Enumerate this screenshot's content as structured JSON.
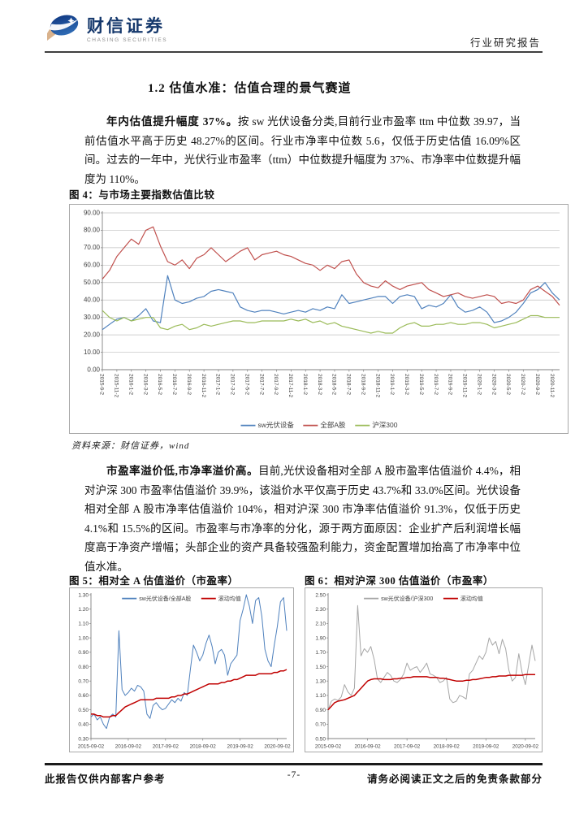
{
  "header": {
    "brand_cn": "财信证券",
    "brand_en": "CHASING SECURITIES",
    "report_type": "行业研究报告"
  },
  "section_title": "1.2 估值水准：估值合理的景气赛道",
  "para1": {
    "lead": "年内估值提升幅度 37%。",
    "text": "按 sw 光伏设备分类,目前行业市盈率 ttm 中位数 39.97，当前估值水平高于历史 48.27%的区间。行业市净率中位数 5.6，仅低于历史估值 16.09%区间。过去的一年中，光伏行业市盈率（ttm）中位数提升幅度为 37%、市净率中位数提升幅度为 110%。"
  },
  "figure4_source": "资料来源：财信证券，wind",
  "para2": {
    "lead": "市盈率溢价低,市净率溢价高。",
    "text": "目前,光伏设备相对全部 A 股市盈率估值溢价 4.4%，相对沪深 300 市盈率估值溢价 39.9%，该溢价水平仅高于历史 43.7%和 33.0%区间。光伏设备相对全部 A 股市净率估值溢价 104%，相对沪深 300 市净率估值溢价 91.3%，仅低于历史 4.1%和 15.5%的区间。市盈率与市净率的分化，源于两方面原因：企业扩产后利润增长幅度高于净资产增幅；头部企业的资产具备较强盈利能力，资金配置增加抬高了市净率中位值水准。"
  },
  "footer": {
    "left": "此报告仅供内部客户参考",
    "page": "-7-",
    "right": "请务必阅读正文之后的免责条款部分"
  },
  "colors": {
    "excel_blue": "#4F81BD",
    "excel_red": "#C0504D",
    "excel_green": "#9BBB59",
    "mean_red": "#C00000",
    "series_gray": "#A6A6A6",
    "brand_navy": "#15386c"
  },
  "chart_data": [
    {
      "type": "line",
      "title": "图 4：与市场主要指数估值比较",
      "ylabel": "",
      "ylim": [
        0,
        90
      ],
      "ytick": 10,
      "ydec": 2,
      "grid": true,
      "legend_pos": "bottom",
      "x_start": "2015-09",
      "x_freq": "monthly",
      "x_label_step": 2,
      "x_rotate": true,
      "x_labels": [
        "2015-9-2",
        "2015-11-2",
        "2016-1-2",
        "2016-3-2",
        "2016-5-2",
        "2016-7-2",
        "2016-9-2",
        "2016-11-2",
        "2017-1-2",
        "2017-3-2",
        "2017-5-2",
        "2017-7-2",
        "2017-9-2",
        "2017-11-2",
        "2018-1-2",
        "2018-3-2",
        "2018-5-2",
        "2018-7-2",
        "2018-9-2",
        "2018-11-2",
        "2019-1-2",
        "2019-3-2",
        "2019-5-2",
        "2019-7-2",
        "2019-9-2",
        "2019-11-2",
        "2020-1-2",
        "2020-3-2",
        "2020-5-2",
        "2020-7-2",
        "2020-9-2",
        "2020-11-2"
      ],
      "series": [
        {
          "name": "sw光伏设备",
          "color": "#4F81BD",
          "values": [
            23,
            26,
            29,
            30,
            28,
            31,
            35,
            28,
            27,
            54,
            40,
            38,
            39,
            41,
            42,
            45,
            46,
            45,
            44,
            36,
            34,
            33,
            34,
            34,
            33,
            32,
            33,
            34,
            33,
            35,
            34,
            36,
            35,
            43,
            38,
            39,
            40,
            41,
            42,
            42,
            38,
            42,
            43,
            42,
            35,
            37,
            36,
            38,
            43,
            36,
            33,
            34,
            36,
            33,
            27,
            28,
            30,
            33,
            38,
            44,
            46,
            50,
            44,
            40
          ]
        },
        {
          "name": "全部A股",
          "color": "#C0504D",
          "values": [
            52,
            57,
            65,
            70,
            75,
            72,
            80,
            82,
            71,
            62,
            60,
            63,
            58,
            64,
            66,
            70,
            66,
            62,
            65,
            68,
            70,
            63,
            66,
            67,
            68,
            66,
            65,
            63,
            61,
            60,
            57,
            60,
            58,
            62,
            63,
            55,
            50,
            48,
            47,
            51,
            48,
            46,
            48,
            49,
            50,
            46,
            44,
            42,
            43,
            44,
            42,
            41,
            42,
            43,
            42,
            38,
            39,
            38,
            40,
            46,
            48,
            45,
            42,
            37
          ]
        },
        {
          "name": "沪深300",
          "color": "#9BBB59",
          "values": [
            34,
            30,
            28,
            30,
            28,
            29,
            30,
            30,
            24,
            23,
            25,
            26,
            23,
            24,
            26,
            25,
            26,
            27,
            28,
            28,
            27,
            27,
            28,
            28,
            28,
            28,
            29,
            28,
            29,
            27,
            28,
            26,
            27,
            25,
            24,
            23,
            22,
            21,
            22,
            21,
            21,
            24,
            26,
            27,
            25,
            25,
            26,
            26,
            27,
            26,
            26,
            27,
            27,
            26,
            24,
            25,
            26,
            27,
            29,
            31,
            31,
            30,
            30,
            30
          ]
        }
      ]
    },
    {
      "type": "line",
      "title": "图 5：相对全 A 估值溢价（市盈率）",
      "ylim": [
        0.3,
        1.3
      ],
      "ytick": 0.1,
      "ydec": 2,
      "grid": false,
      "legend_pos": "top",
      "x_start": "2015-09",
      "x_freq": "monthly",
      "x_label_step": 12,
      "x_rotate": false,
      "x_labels": [
        "2015-09-02",
        "2016-09-02",
        "2017-09-02",
        "2018-09-02",
        "2019-09-02",
        "2020-09-02"
      ],
      "series": [
        {
          "name": "sw光伏设备/全部A股",
          "color": "#4F81BD",
          "values": [
            0.45,
            0.47,
            0.43,
            0.45,
            0.4,
            0.37,
            0.45,
            0.47,
            0.45,
            1.05,
            0.64,
            0.6,
            0.62,
            0.65,
            0.63,
            0.67,
            0.66,
            0.63,
            0.47,
            0.44,
            0.53,
            0.55,
            0.52,
            0.5,
            0.51,
            0.54,
            0.57,
            0.55,
            0.58,
            0.56,
            0.62,
            0.6,
            0.78,
            0.95,
            0.9,
            0.84,
            0.88,
            0.96,
            1.02,
            0.94,
            0.82,
            0.9,
            0.92,
            0.88,
            0.74,
            0.82,
            0.85,
            0.88,
            1.12,
            1.2,
            1.3,
            1.22,
            1.1,
            1.26,
            1.28,
            1.15,
            0.92,
            0.84,
            0.8,
            0.95,
            1.08,
            1.25,
            1.28,
            1.05
          ]
        },
        {
          "name": "滚动均值",
          "color": "#C00000",
          "values": [
            0.47,
            0.47,
            0.46,
            0.46,
            0.45,
            0.45,
            0.45,
            0.46,
            0.46,
            0.48,
            0.5,
            0.52,
            0.53,
            0.54,
            0.55,
            0.56,
            0.57,
            0.57,
            0.57,
            0.57,
            0.57,
            0.58,
            0.58,
            0.58,
            0.58,
            0.58,
            0.59,
            0.59,
            0.6,
            0.6,
            0.61,
            0.61,
            0.62,
            0.63,
            0.64,
            0.65,
            0.66,
            0.67,
            0.68,
            0.68,
            0.68,
            0.68,
            0.69,
            0.69,
            0.7,
            0.7,
            0.71,
            0.71,
            0.72,
            0.73,
            0.74,
            0.74,
            0.74,
            0.74,
            0.75,
            0.75,
            0.75,
            0.75,
            0.75,
            0.76,
            0.76,
            0.77,
            0.77,
            0.78
          ]
        }
      ]
    },
    {
      "type": "line",
      "title": "图 6：相对沪深 300 估值溢价（市盈率）",
      "ylim": [
        0.5,
        2.5
      ],
      "ytick": 0.2,
      "ydec": 2,
      "grid": false,
      "legend_pos": "top",
      "x_start": "2015-09",
      "x_freq": "monthly",
      "x_label_step": 12,
      "x_rotate": false,
      "x_labels": [
        "2015-09-02",
        "2016-09-02",
        "2017-09-02",
        "2018-09-02",
        "2019-09-02",
        "2020-09-02"
      ],
      "series": [
        {
          "name": "sw光伏设备/沪深300",
          "color": "#A6A6A6",
          "values": [
            0.9,
            1.02,
            1.05,
            1.03,
            1.08,
            1.25,
            1.15,
            1.1,
            1.2,
            2.35,
            1.65,
            1.75,
            1.7,
            1.78,
            1.6,
            1.33,
            1.28,
            1.35,
            1.42,
            1.38,
            1.3,
            1.28,
            1.32,
            1.4,
            1.55,
            1.45,
            1.48,
            1.5,
            1.42,
            1.48,
            1.55,
            1.4,
            1.38,
            1.35,
            1.28,
            1.3,
            1.35,
            1.05,
            1.0,
            1.02,
            1.1,
            1.08,
            1.05,
            1.4,
            1.45,
            1.55,
            1.65,
            1.6,
            1.7,
            1.9,
            1.8,
            1.85,
            1.68,
            1.88,
            1.75,
            1.45,
            1.3,
            1.35,
            1.68,
            1.42,
            1.25,
            1.52,
            1.8,
            1.58
          ]
        },
        {
          "name": "滚动均值",
          "color": "#C00000",
          "values": [
            0.9,
            0.95,
            1.0,
            1.02,
            1.03,
            1.04,
            1.06,
            1.08,
            1.1,
            1.15,
            1.2,
            1.25,
            1.3,
            1.32,
            1.33,
            1.33,
            1.33,
            1.32,
            1.32,
            1.32,
            1.33,
            1.33,
            1.34,
            1.34,
            1.35,
            1.35,
            1.36,
            1.36,
            1.36,
            1.36,
            1.36,
            1.35,
            1.35,
            1.35,
            1.34,
            1.34,
            1.33,
            1.32,
            1.31,
            1.3,
            1.3,
            1.3,
            1.31,
            1.31,
            1.32,
            1.32,
            1.33,
            1.34,
            1.35,
            1.35,
            1.36,
            1.36,
            1.37,
            1.37,
            1.37,
            1.38,
            1.38,
            1.38,
            1.38,
            1.38,
            1.39,
            1.39,
            1.39,
            1.39
          ]
        }
      ]
    }
  ]
}
